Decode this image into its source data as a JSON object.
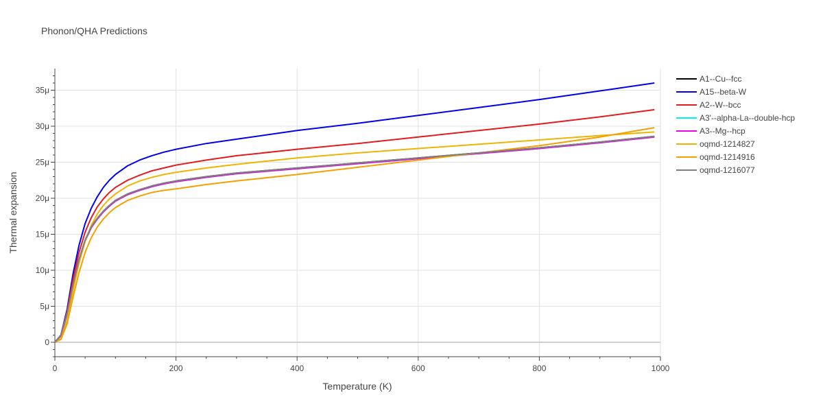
{
  "chart_data": {
    "type": "line",
    "title": "Phonon/QHA Predictions",
    "xlabel": "Temperature (K)",
    "ylabel": "Thermal expansion",
    "xlim": [
      0,
      1000
    ],
    "ylim": [
      -2e-06,
      3.8e-05
    ],
    "x_ticks": [
      0,
      200,
      400,
      600,
      800,
      1000
    ],
    "x_tick_labels": [
      "0",
      "200",
      "400",
      "600",
      "800",
      "1000"
    ],
    "y_ticks": [
      0,
      5e-06,
      1e-05,
      1.5e-05,
      2e-05,
      2.5e-05,
      3e-05,
      3.5e-05
    ],
    "y_tick_labels": [
      "0",
      "5μ",
      "10μ",
      "15μ",
      "20μ",
      "25μ",
      "30μ",
      "35μ"
    ],
    "grid": true,
    "legend_position": "top-right, outside plot",
    "x": [
      0,
      10,
      20,
      30,
      40,
      50,
      60,
      70,
      80,
      90,
      100,
      120,
      140,
      160,
      180,
      200,
      250,
      300,
      400,
      500,
      600,
      700,
      800,
      900,
      990
    ],
    "series": [
      {
        "name": "A1--Cu--fcc",
        "color": "#000000",
        "values": [
          0,
          1e-06,
          4e-06,
          8e-06,
          1.15e-05,
          1.42e-05,
          1.6e-05,
          1.72e-05,
          1.82e-05,
          1.9e-05,
          1.97e-05,
          2.06e-05,
          2.12e-05,
          2.17e-05,
          2.21e-05,
          2.24e-05,
          2.3e-05,
          2.35e-05,
          2.42e-05,
          2.49e-05,
          2.56e-05,
          2.63e-05,
          2.7e-05,
          2.78e-05,
          2.86e-05
        ]
      },
      {
        "name": "A15--beta-W",
        "color": "#0000ee",
        "values": [
          0,
          1e-06,
          4.5e-06,
          9.5e-06,
          1.35e-05,
          1.65e-05,
          1.86e-05,
          2.02e-05,
          2.15e-05,
          2.25e-05,
          2.33e-05,
          2.45e-05,
          2.53e-05,
          2.59e-05,
          2.64e-05,
          2.68e-05,
          2.76e-05,
          2.82e-05,
          2.94e-05,
          3.04e-05,
          3.15e-05,
          3.26e-05,
          3.37e-05,
          3.49e-05,
          3.6e-05
        ]
      },
      {
        "name": "A2--W--bcc",
        "color": "#e41a1c",
        "values": [
          0,
          1e-06,
          4.2e-06,
          8.8e-06,
          1.25e-05,
          1.53e-05,
          1.73e-05,
          1.88e-05,
          1.99e-05,
          2.08e-05,
          2.15e-05,
          2.25e-05,
          2.32e-05,
          2.38e-05,
          2.42e-05,
          2.46e-05,
          2.53e-05,
          2.59e-05,
          2.68e-05,
          2.76e-05,
          2.85e-05,
          2.94e-05,
          3.03e-05,
          3.13e-05,
          3.23e-05
        ]
      },
      {
        "name": "A3'--alpha-La--double-hcp",
        "color": "#00f0f0",
        "values": [
          0,
          9e-07,
          3.8e-06,
          7.8e-06,
          1.13e-05,
          1.4e-05,
          1.59e-05,
          1.71e-05,
          1.81e-05,
          1.89e-05,
          1.96e-05,
          2.05e-05,
          2.11e-05,
          2.16e-05,
          2.2e-05,
          2.23e-05,
          2.29e-05,
          2.34e-05,
          2.41e-05,
          2.48e-05,
          2.55e-05,
          2.62e-05,
          2.69e-05,
          2.77e-05,
          2.85e-05
        ]
      },
      {
        "name": "A3--Mg--hcp",
        "color": "#ee00ee",
        "values": [
          0,
          9e-07,
          3.9e-06,
          7.9e-06,
          1.14e-05,
          1.41e-05,
          1.59e-05,
          1.71e-05,
          1.81e-05,
          1.89e-05,
          1.96e-05,
          2.05e-05,
          2.11e-05,
          2.16e-05,
          2.2e-05,
          2.23e-05,
          2.29e-05,
          2.34e-05,
          2.41e-05,
          2.48e-05,
          2.55e-05,
          2.62e-05,
          2.69e-05,
          2.77e-05,
          2.85e-05
        ]
      },
      {
        "name": "oqmd-1214827",
        "color": "#f0b400",
        "values": [
          0,
          5e-07,
          3e-06,
          7.2e-06,
          1.1e-05,
          1.4e-05,
          1.62e-05,
          1.78e-05,
          1.9e-05,
          1.99e-05,
          2.06e-05,
          2.17e-05,
          2.24e-05,
          2.29e-05,
          2.33e-05,
          2.36e-05,
          2.42e-05,
          2.47e-05,
          2.56e-05,
          2.63e-05,
          2.69e-05,
          2.75e-05,
          2.81e-05,
          2.87e-05,
          2.92e-05
        ]
      },
      {
        "name": "oqmd-1214916",
        "color": "#f5a000",
        "values": [
          0,
          4e-07,
          2.5e-06,
          6.3e-06,
          9.7e-06,
          1.25e-05,
          1.45e-05,
          1.6e-05,
          1.71e-05,
          1.8e-05,
          1.87e-05,
          1.97e-05,
          2.03e-05,
          2.08e-05,
          2.11e-05,
          2.13e-05,
          2.19e-05,
          2.24e-05,
          2.33e-05,
          2.43e-05,
          2.53e-05,
          2.63e-05,
          2.73e-05,
          2.85e-05,
          2.98e-05
        ]
      },
      {
        "name": "oqmd-1216077",
        "color": "#7f7f7f",
        "values": [
          0,
          1e-06,
          4e-06,
          8e-06,
          1.15e-05,
          1.42e-05,
          1.6e-05,
          1.72e-05,
          1.82e-05,
          1.9e-05,
          1.97e-05,
          2.06e-05,
          2.12e-05,
          2.17e-05,
          2.21e-05,
          2.24e-05,
          2.3e-05,
          2.35e-05,
          2.42e-05,
          2.49e-05,
          2.56e-05,
          2.63e-05,
          2.7e-05,
          2.78e-05,
          2.86e-05
        ]
      }
    ]
  }
}
